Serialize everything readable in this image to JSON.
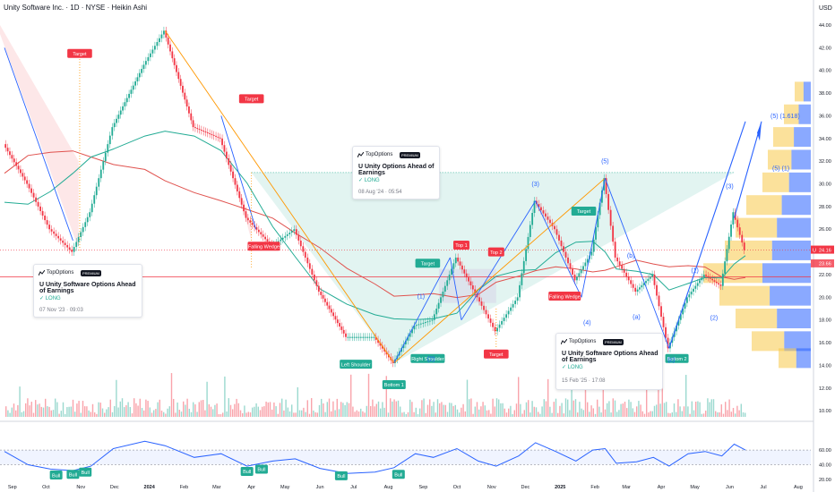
{
  "header": {
    "title": "Unity Software Inc. · 1D · NYSE · Heikin Ashi",
    "currency": "USD"
  },
  "price_axis": {
    "ticks": [
      "44.00",
      "42.00",
      "40.00",
      "38.00",
      "36.00",
      "34.00",
      "32.00",
      "30.00",
      "28.00",
      "26.00",
      "24.00",
      "22.00",
      "20.00",
      "18.00",
      "16.00",
      "14.00",
      "12.00",
      "10.00"
    ],
    "last_price": "24.16",
    "prev_price": "23.66",
    "symbol_badge": "U"
  },
  "rsi_axis": {
    "ticks": [
      "60.00",
      "40.00",
      "20.00"
    ]
  },
  "time_axis": {
    "labels": [
      "Sep",
      "Oct",
      "Nov",
      "Dec",
      "2024",
      "Feb",
      "Mar",
      "Apr",
      "May",
      "Jun",
      "Jul",
      "Aug",
      "Sep",
      "Oct",
      "Nov",
      "Dec",
      "2025",
      "Feb",
      "Mar",
      "Apr",
      "May",
      "Jun",
      "Jul",
      "Aug"
    ]
  },
  "annotations": {
    "targets": [
      "Target",
      "Target",
      "Target",
      "Target",
      "Target"
    ],
    "patterns": [
      "Falling Wedge",
      "Falling Wedge",
      "Left Shoulder",
      "Right Shoulder",
      "Bottom 1",
      "Top 1",
      "Top 2",
      "Bottom 2"
    ],
    "waves": [
      "(3)",
      "(5)",
      "(1)",
      "(2)",
      "(4)",
      "(a)",
      "(b)",
      "(c)",
      "(1)",
      "(2)",
      "(3)",
      "(5) (1)",
      "(5) (1.618)"
    ],
    "rsi_bull": [
      "Bull",
      "Bull",
      "Bull",
      "Bull",
      "Bull",
      "Bull",
      "Bull"
    ]
  },
  "cards": [
    {
      "brand": "TopOptions",
      "badge": "PREMIUM",
      "title": "U Unity Software Options Ahead of Earnings",
      "direction": "LONG",
      "timestamp": "07 Nov '23 · 09:03"
    },
    {
      "brand": "TopOptions",
      "badge": "PREMIUM",
      "title": "U Unity Options Ahead of Earnings",
      "direction": "LONG",
      "timestamp": "08 Aug '24 · 05:54"
    },
    {
      "brand": "TopOptions",
      "badge": "PREMIUM",
      "title": "U Unity Software Options Ahead of Earnings",
      "direction": "LONG",
      "timestamp": "15 Feb '25 · 17:08"
    }
  ],
  "colors": {
    "up": "#22ab94",
    "down": "#f23645",
    "ma_red": "#e0524e",
    "ma_green": "#22ab94",
    "wave": "#2962ff",
    "orange": "#ff9800"
  },
  "chart_data": [
    {
      "type": "line",
      "title": "Unity Software Inc. · 1D · NYSE · Heikin Ashi",
      "ylabel": "USD",
      "x": [
        "2023-08-25",
        "2023-09-15",
        "2023-10-05",
        "2023-10-25",
        "2023-11-10",
        "2023-11-30",
        "2023-12-28",
        "2024-01-15",
        "2024-02-10",
        "2024-03-05",
        "2024-03-28",
        "2024-04-20",
        "2024-05-10",
        "2024-06-01",
        "2024-06-25",
        "2024-07-20",
        "2024-08-06",
        "2024-08-25",
        "2024-09-10",
        "2024-10-01",
        "2024-10-20",
        "2024-11-05",
        "2024-11-25",
        "2024-12-10",
        "2024-12-28",
        "2025-01-15",
        "2025-01-30",
        "2025-02-10",
        "2025-02-20",
        "2025-03-10",
        "2025-03-25",
        "2025-04-08",
        "2025-04-25",
        "2025-05-10",
        "2025-05-25",
        "2025-06-05",
        "2025-06-15"
      ],
      "values": [
        33.5,
        30.0,
        26.0,
        24.0,
        27.5,
        35.0,
        40.5,
        43.5,
        35.0,
        34.0,
        27.0,
        24.5,
        26.0,
        20.5,
        16.5,
        16.5,
        14.2,
        17.5,
        18.0,
        23.5,
        20.0,
        17.0,
        20.0,
        28.5,
        26.0,
        21.5,
        24.0,
        30.5,
        23.5,
        20.5,
        22.0,
        15.5,
        20.0,
        22.0,
        21.0,
        27.5,
        24.16
      ],
      "ylim": [
        9,
        46
      ],
      "grid": true
    },
    {
      "type": "line",
      "title": "RSI",
      "x": [
        "2023-08-25",
        "2023-09-15",
        "2023-10-05",
        "2023-10-25",
        "2023-11-10",
        "2023-11-30",
        "2023-12-28",
        "2024-01-15",
        "2024-02-10",
        "2024-03-05",
        "2024-03-28",
        "2024-04-20",
        "2024-05-10",
        "2024-06-01",
        "2024-06-25",
        "2024-07-20",
        "2024-08-06",
        "2024-08-25",
        "2024-09-10",
        "2024-10-01",
        "2024-10-20",
        "2024-11-05",
        "2024-11-25",
        "2024-12-10",
        "2024-12-28",
        "2025-01-15",
        "2025-01-30",
        "2025-02-10",
        "2025-02-20",
        "2025-03-10",
        "2025-03-25",
        "2025-04-08",
        "2025-04-25",
        "2025-05-10",
        "2025-05-25",
        "2025-06-05",
        "2025-06-15"
      ],
      "values": [
        58,
        40,
        34,
        32,
        38,
        62,
        72,
        66,
        50,
        55,
        38,
        45,
        48,
        35,
        28,
        30,
        36,
        55,
        50,
        62,
        45,
        38,
        52,
        70,
        58,
        45,
        60,
        62,
        42,
        44,
        50,
        38,
        55,
        58,
        52,
        68,
        60
      ],
      "ylim": [
        10,
        80
      ]
    }
  ]
}
